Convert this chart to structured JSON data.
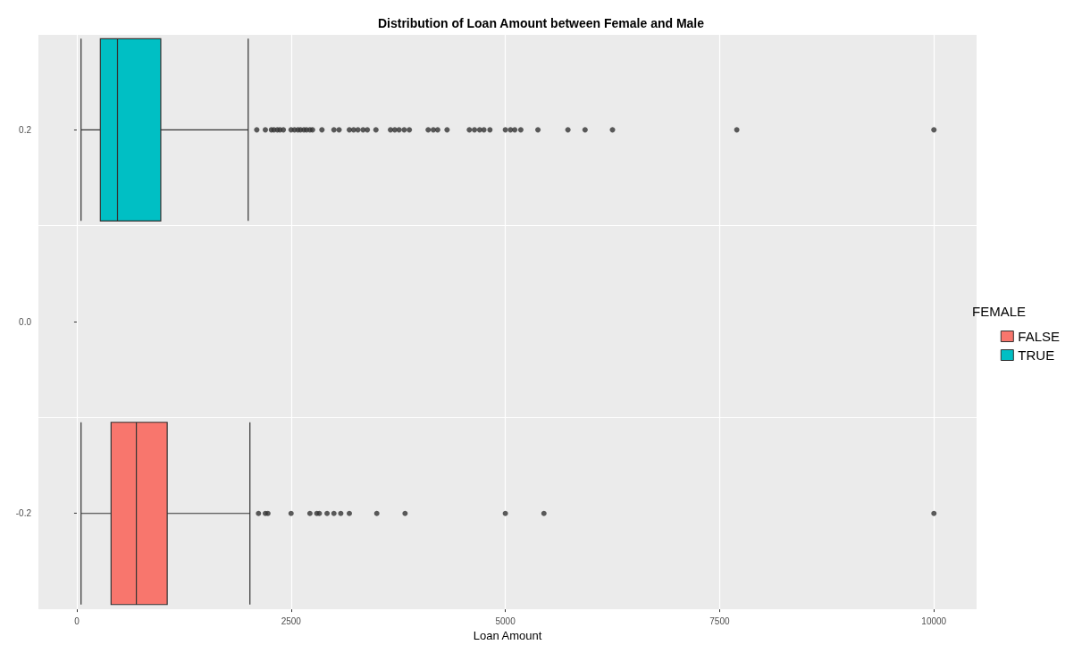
{
  "chart_data": {
    "type": "box",
    "orientation": "horizontal",
    "title": "Distribution of Loan Amount between Female and Male",
    "xlabel": "Loan Amount",
    "legend_title": "FEMALE",
    "legend": "right",
    "grid": true,
    "xlim": [
      -447.5,
      10497.5
    ],
    "xticks": [
      0,
      2500,
      5000,
      7500,
      10000
    ],
    "categories": [
      "0.2",
      "0.0",
      "-0.2"
    ],
    "series": [
      {
        "name": "FALSE",
        "color": "#f8766d",
        "boxes": [
          null,
          null,
          {
            "low": 50,
            "q1": 400,
            "median": 695,
            "q3": 1055,
            "high": 2020,
            "outliers": [
              2120,
              2200,
              2230,
              2500,
              2720,
              2800,
              2830,
              2920,
              3000,
              3080,
              3180,
              3500,
              3830,
              5000,
              5450,
              10000
            ]
          }
        ]
      },
      {
        "name": "TRUE",
        "color": "#00bfc4",
        "boxes": [
          {
            "low": 50,
            "q1": 275,
            "median": 475,
            "q3": 980,
            "high": 2000,
            "outliers": [
              2100,
              2200,
              2270,
              2300,
              2340,
              2370,
              2410,
              2500,
              2540,
              2580,
              2610,
              2650,
              2680,
              2720,
              2750,
              2860,
              3000,
              3060,
              3180,
              3230,
              3280,
              3340,
              3390,
              3490,
              3660,
              3710,
              3760,
              3820,
              3880,
              4100,
              4160,
              4210,
              4320,
              4580,
              4640,
              4700,
              4750,
              4820,
              5000,
              5060,
              5110,
              5180,
              5380,
              5730,
              5930,
              6250,
              7700,
              10000
            ]
          },
          null,
          null
        ]
      }
    ]
  }
}
